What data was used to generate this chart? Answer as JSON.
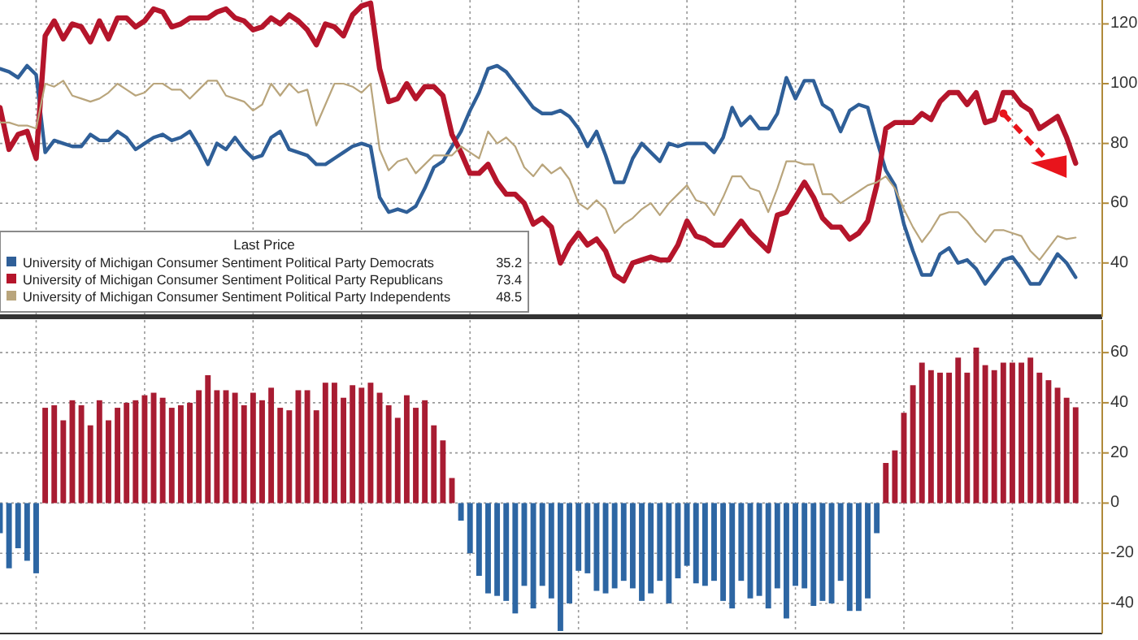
{
  "chart_data": [
    {
      "type": "line",
      "legend_title": "Last Price",
      "legend": "bottom left",
      "grid": true,
      "categories": [
        null,
        null,
        null,
        null,
        null,
        null,
        null,
        null,
        null,
        null,
        null,
        null,
        null,
        null,
        null,
        null,
        null,
        null,
        null,
        null,
        null,
        null,
        null,
        null,
        null,
        null,
        null,
        null,
        null,
        null,
        null,
        null,
        null,
        null,
        null,
        null,
        null,
        null,
        null,
        null,
        null,
        null,
        null,
        null,
        null,
        null,
        null,
        null,
        null,
        null,
        null,
        null,
        null,
        null,
        null,
        null,
        null,
        null,
        null,
        null,
        null,
        null,
        null,
        null,
        null,
        null,
        null,
        null,
        null,
        null,
        null,
        null,
        null,
        null,
        null,
        null,
        null,
        null,
        null,
        null,
        null,
        null,
        null,
        null,
        null,
        null,
        null,
        null,
        null,
        null,
        null,
        null,
        null,
        null,
        null,
        null,
        null,
        null,
        null,
        null,
        null,
        null,
        null,
        null,
        null,
        null,
        null,
        null,
        null,
        null,
        null,
        null,
        null,
        null,
        null,
        null,
        null,
        null,
        null,
        null
      ],
      "ylim": [
        22,
        128
      ],
      "yticks": [
        40,
        60,
        80,
        100,
        120
      ],
      "annotations": [
        "35.2",
        "73.4",
        "48.5"
      ],
      "series": [
        {
          "name": "University of Michigan Consumer Sentiment Political Party Democrats",
          "color": "#2f5f98",
          "values": [
            105,
            104,
            102,
            106,
            103,
            77,
            81,
            80,
            79,
            79,
            83,
            81,
            81,
            84,
            82,
            78,
            80,
            82,
            83,
            81,
            82,
            84,
            79,
            73,
            80,
            78,
            82,
            78,
            75,
            76,
            82,
            84,
            78,
            77,
            76,
            73,
            73,
            75,
            77,
            79,
            80,
            79,
            62,
            57,
            58,
            57,
            59,
            65,
            72,
            74,
            79,
            84,
            91,
            97,
            105,
            106,
            104,
            100,
            96,
            92,
            90,
            90,
            91,
            89,
            85,
            79,
            84,
            76,
            67,
            67,
            75,
            80,
            77,
            74,
            80,
            79,
            80,
            80,
            80,
            77,
            82,
            92,
            86,
            89,
            85,
            85,
            90,
            102,
            95,
            101,
            101,
            93,
            91,
            84,
            91,
            93,
            92,
            81,
            71,
            66,
            53,
            44,
            36,
            36,
            43,
            45,
            40,
            41,
            38,
            33,
            37,
            41,
            42,
            38,
            33,
            33,
            38,
            43,
            40,
            35.2
          ]
        },
        {
          "name": "University of Michigan Consumer Sentiment Political Party Republicans",
          "color": "#b5152b",
          "values": [
            92,
            78,
            83,
            84,
            75,
            116,
            121,
            115,
            120,
            119,
            114,
            121,
            115,
            122,
            122,
            119,
            121,
            125,
            124,
            119,
            120,
            122,
            122,
            122,
            124,
            125,
            122,
            121,
            118,
            119,
            122,
            120,
            123,
            121,
            118,
            113,
            120,
            119,
            116,
            123,
            126,
            127,
            105,
            94,
            95,
            100,
            95,
            99,
            99,
            96,
            83,
            77,
            70,
            70,
            73,
            67,
            63,
            63,
            60,
            53,
            55,
            52,
            40,
            46,
            50,
            46,
            48,
            44,
            36,
            34,
            40,
            41,
            42,
            41,
            41,
            46,
            54,
            49,
            48,
            46,
            46,
            50,
            54,
            50,
            47,
            44,
            56,
            57,
            62,
            67,
            62,
            55,
            52,
            52,
            48,
            50,
            54,
            66,
            85,
            87,
            87,
            87,
            90,
            88,
            94,
            97,
            97,
            93,
            97,
            87,
            88,
            97,
            97,
            93,
            91,
            85,
            87,
            89,
            82,
            73.4
          ]
        },
        {
          "name": "University of Michigan Consumer Sentiment Political Party Independents",
          "color": "#b9a57c",
          "values": [
            87,
            87,
            86,
            86,
            85,
            100,
            99,
            101,
            96,
            95,
            94,
            95,
            97,
            100,
            98,
            96,
            97,
            100,
            100,
            98,
            98,
            95,
            98,
            101,
            101,
            96,
            95,
            94,
            91,
            93,
            100,
            96,
            100,
            97,
            98,
            86,
            93,
            100,
            100,
            99,
            97,
            100,
            78,
            71,
            74,
            75,
            70,
            73,
            76,
            76,
            76,
            79,
            77,
            75,
            84,
            80,
            82,
            79,
            72,
            69,
            73,
            70,
            72,
            68,
            60,
            58,
            61,
            58,
            50,
            53,
            55,
            58,
            60,
            56,
            60,
            63,
            66,
            61,
            60,
            56,
            62,
            69,
            69,
            65,
            64,
            57,
            65,
            74,
            74,
            73,
            73,
            63,
            63,
            60,
            62,
            64,
            66,
            67,
            69,
            65,
            58,
            52,
            47,
            51,
            56,
            57,
            57,
            54,
            50,
            47,
            51,
            51,
            50,
            49,
            44,
            41,
            45,
            49,
            48,
            48.5
          ]
        }
      ]
    },
    {
      "type": "bar",
      "grid": true,
      "categories": [
        null,
        null,
        null,
        null,
        null,
        null,
        null,
        null,
        null,
        null,
        null,
        null,
        null,
        null,
        null,
        null,
        null,
        null,
        null,
        null,
        null,
        null,
        null,
        null,
        null,
        null,
        null,
        null,
        null,
        null,
        null,
        null,
        null,
        null,
        null,
        null,
        null,
        null,
        null,
        null,
        null,
        null,
        null,
        null,
        null,
        null,
        null,
        null,
        null,
        null,
        null,
        null,
        null,
        null,
        null,
        null,
        null,
        null,
        null,
        null,
        null,
        null,
        null,
        null,
        null,
        null,
        null,
        null,
        null,
        null,
        null,
        null,
        null,
        null,
        null,
        null,
        null,
        null,
        null,
        null,
        null,
        null,
        null,
        null,
        null,
        null,
        null,
        null,
        null,
        null,
        null,
        null,
        null,
        null,
        null,
        null,
        null,
        null,
        null,
        null,
        null,
        null,
        null,
        null,
        null,
        null,
        null,
        null,
        null,
        null,
        null,
        null,
        null,
        null,
        null,
        null,
        null,
        null,
        null,
        null
      ],
      "ylim": [
        -52,
        73
      ],
      "yticks": [
        -40,
        -20,
        0,
        20,
        40,
        60
      ],
      "values": [
        -12,
        -26,
        -18,
        -23,
        -28,
        38,
        39,
        33,
        41,
        39,
        31,
        41,
        33,
        38,
        40,
        41,
        43,
        44,
        42,
        38,
        39,
        40,
        45,
        51,
        45,
        45,
        44,
        39,
        44,
        41,
        46,
        38,
        37,
        45,
        45,
        37,
        48,
        48,
        42,
        47,
        46,
        48,
        44,
        39,
        34,
        43,
        38,
        41,
        31,
        25,
        10,
        -7,
        -20,
        -29,
        -36,
        -37,
        -39,
        -44,
        -33,
        -42,
        -33,
        -38,
        -51,
        -40,
        -27,
        -28,
        -35,
        -36,
        -34,
        -31,
        -34,
        -39,
        -36,
        -31,
        -40,
        -30,
        -25,
        -32,
        -33,
        -31,
        -39,
        -42,
        -31,
        -38,
        -37,
        -42,
        -34,
        -46,
        -33,
        -34,
        -41,
        -39,
        -40,
        -31,
        -43,
        -43,
        -38,
        -12,
        16,
        21,
        36,
        47,
        56,
        53,
        52,
        52,
        58,
        52,
        62,
        55,
        53,
        56,
        56,
        56,
        58,
        52,
        49,
        46,
        42,
        38.2
      ],
      "colors": [
        "#2d66a3",
        "#2d66a3",
        "#2d66a3",
        "#2d66a3",
        "#2d66a3",
        "#a81c32",
        "#a81c32",
        "#a81c32",
        "#a81c32",
        "#a81c32",
        "#a81c32",
        "#a81c32",
        "#a81c32",
        "#a81c32",
        "#a81c32",
        "#a81c32",
        "#a81c32",
        "#a81c32",
        "#a81c32",
        "#a81c32",
        "#a81c32",
        "#a81c32",
        "#a81c32",
        "#a81c32",
        "#a81c32",
        "#a81c32",
        "#a81c32",
        "#a81c32",
        "#a81c32",
        "#a81c32",
        "#a81c32",
        "#a81c32",
        "#a81c32",
        "#a81c32",
        "#a81c32",
        "#a81c32",
        "#a81c32",
        "#a81c32",
        "#a81c32",
        "#a81c32",
        "#a81c32",
        "#a81c32",
        "#a81c32",
        "#a81c32",
        "#a81c32",
        "#a81c32",
        "#a81c32",
        "#a81c32",
        "#a81c32",
        "#a81c32",
        "#a81c32",
        "#2d66a3",
        "#2d66a3",
        "#2d66a3",
        "#2d66a3",
        "#2d66a3",
        "#2d66a3",
        "#2d66a3",
        "#2d66a3",
        "#2d66a3",
        "#2d66a3",
        "#2d66a3",
        "#2d66a3",
        "#2d66a3",
        "#2d66a3",
        "#2d66a3",
        "#2d66a3",
        "#2d66a3",
        "#2d66a3",
        "#2d66a3",
        "#2d66a3",
        "#2d66a3",
        "#2d66a3",
        "#2d66a3",
        "#2d66a3",
        "#2d66a3",
        "#2d66a3",
        "#2d66a3",
        "#2d66a3",
        "#2d66a3",
        "#2d66a3",
        "#2d66a3",
        "#2d66a3",
        "#2d66a3",
        "#2d66a3",
        "#2d66a3",
        "#2d66a3",
        "#2d66a3",
        "#2d66a3",
        "#2d66a3",
        "#2d66a3",
        "#2d66a3",
        "#2d66a3",
        "#2d66a3",
        "#2d66a3",
        "#2d66a3",
        "#2d66a3",
        "#2d66a3",
        "#a81c32",
        "#a81c32",
        "#a81c32",
        "#a81c32",
        "#a81c32",
        "#a81c32",
        "#a81c32",
        "#a81c32",
        "#a81c32",
        "#a81c32",
        "#a81c32",
        "#a81c32",
        "#a81c32",
        "#a81c32",
        "#a81c32",
        "#a81c32",
        "#a81c32",
        "#a81c32",
        "#a81c32",
        "#a81c32",
        "#a81c32",
        "#a81c32"
      ]
    }
  ]
}
